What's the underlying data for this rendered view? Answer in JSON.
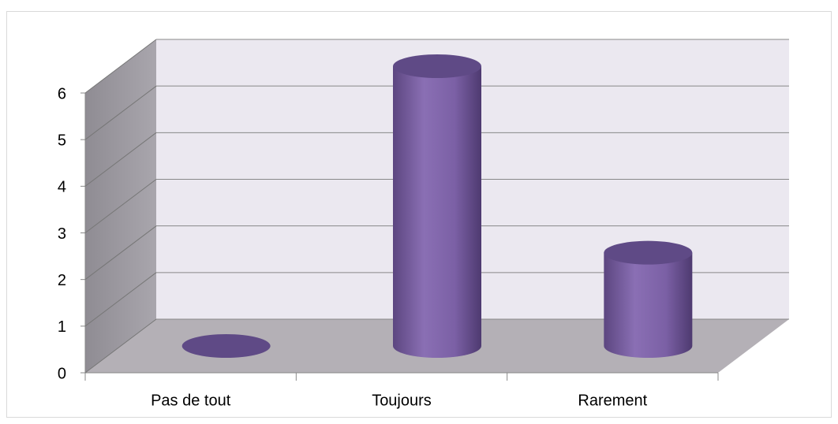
{
  "chart_data": {
    "type": "bar3d",
    "categories": [
      "Pas de tout",
      "Toujours",
      "Rarement"
    ],
    "values": [
      0,
      6,
      2
    ],
    "color": "#7f63a8",
    "ylim": [
      0,
      6
    ],
    "yticks": [
      0,
      1,
      2,
      3,
      4,
      5,
      6
    ],
    "grid": true
  }
}
